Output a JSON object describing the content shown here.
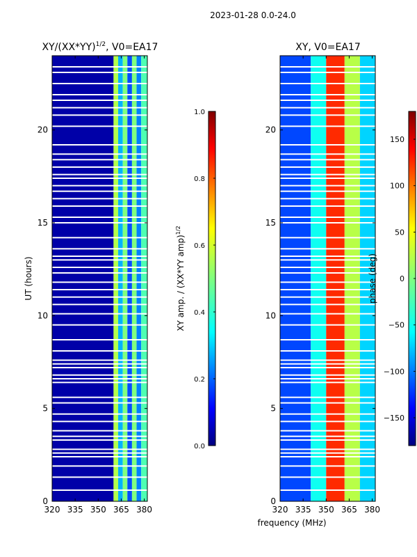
{
  "suptitle": "2023-01-28 0.0-24.0",
  "shared_xlabel": "frequency (MHz)",
  "chart_data": [
    {
      "type": "heatmap",
      "title_main": "XY/(XX*YY)",
      "title_sup": "1/2",
      "title_tail": ", V0=EA17",
      "xlabel": "",
      "ylabel": "UT (hours)",
      "xlim": [
        320,
        382
      ],
      "ylim": [
        0,
        24
      ],
      "xticks": [
        320,
        335,
        350,
        365,
        380
      ],
      "yticks": [
        0,
        5,
        10,
        15,
        20
      ],
      "colorbar": {
        "label_main": "XY amp. / (XX*YY amp)",
        "label_sup": "1/2",
        "range": [
          0.0,
          1.0
        ],
        "ticks": [
          "0.0",
          "0.2",
          "0.4",
          "0.6",
          "0.8",
          "1.0"
        ],
        "tick_values": [
          0.0,
          0.2,
          0.4,
          0.6,
          0.8,
          1.0
        ]
      },
      "regions": [
        {
          "x": [
            320,
            360
          ],
          "value": 0.04
        },
        {
          "x": [
            360,
            363
          ],
          "value": 0.55
        },
        {
          "x": [
            363,
            366
          ],
          "value": 0.3
        },
        {
          "x": [
            366,
            369
          ],
          "value": 0.5
        },
        {
          "x": [
            369,
            372
          ],
          "value": 0.2
        },
        {
          "x": [
            372,
            375
          ],
          "value": 0.5
        },
        {
          "x": [
            375,
            378
          ],
          "value": 0.25
        },
        {
          "x": [
            378,
            382
          ],
          "value": 0.45
        }
      ]
    },
    {
      "type": "heatmap",
      "title_main": "XY, V0=EA17",
      "xlabel": "frequency (MHz)",
      "ylabel": "",
      "xlim": [
        320,
        382
      ],
      "ylim": [
        0,
        24
      ],
      "xticks": [
        320,
        335,
        350,
        365,
        380
      ],
      "yticks": [
        0,
        5,
        10,
        15,
        20
      ],
      "colorbar": {
        "label_main": "phase (deg)",
        "range": [
          -180,
          180
        ],
        "ticks": [
          "−150",
          "−100",
          "−50",
          "0",
          "50",
          "100",
          "150"
        ],
        "tick_values": [
          -150,
          -100,
          -50,
          0,
          50,
          100,
          150
        ]
      },
      "regions": [
        {
          "x": [
            320,
            340
          ],
          "value": -110
        },
        {
          "x": [
            340,
            350
          ],
          "value": -40
        },
        {
          "x": [
            350,
            362
          ],
          "value": 120
        },
        {
          "x": [
            362,
            372
          ],
          "value": 20
        },
        {
          "x": [
            372,
            382
          ],
          "value": -60
        }
      ]
    }
  ],
  "flagged_rows_hours": [
    0.6,
    1.3,
    1.9,
    2.4,
    2.6,
    2.8,
    3.3,
    3.5,
    3.8,
    4.3,
    4.7,
    5.3,
    5.6,
    6.4,
    6.6,
    6.8,
    7.2,
    7.4,
    7.6,
    8.1,
    8.7,
    9.5,
    10.1,
    10.6,
    11.0,
    11.4,
    11.8,
    12.3,
    12.6,
    13.0,
    13.2,
    13.6,
    14.2,
    15.0,
    15.3,
    15.9,
    16.3,
    16.7,
    17.0,
    17.4,
    17.6,
    18.0,
    18.4,
    18.7,
    19.2,
    20.2,
    20.8,
    21.2,
    21.6,
    21.9,
    22.5,
    23.1,
    23.4
  ]
}
